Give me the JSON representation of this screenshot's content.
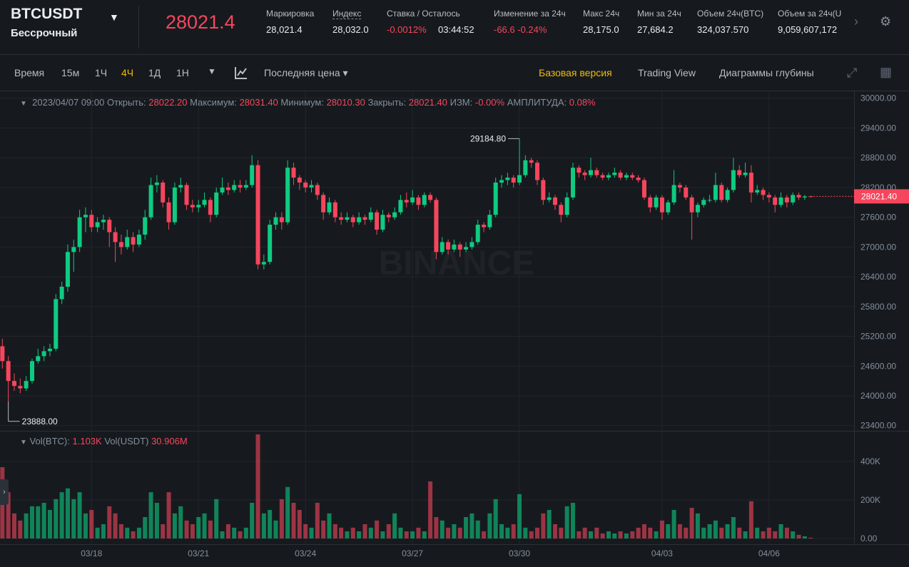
{
  "header": {
    "symbol": "BTCUSDT",
    "contract": "Бессрочный",
    "last_price": "28021.4",
    "stats": [
      {
        "label": "Маркировка",
        "value": "28,021.4"
      },
      {
        "label": "Индекс",
        "value": "28,032.0"
      },
      {
        "label": "Ставка / Осталось",
        "value": "-0.0012%",
        "extra": "03:44:52"
      },
      {
        "label": "Изменение за 24ч",
        "value": "-66.6 -0.24%"
      },
      {
        "label": "Макс 24ч",
        "value": "28,175.0"
      },
      {
        "label": "Мин за 24ч",
        "value": "27,684.2"
      },
      {
        "label": "Объем 24ч(BTC)",
        "value": "324,037.570"
      },
      {
        "label": "Объем за 24ч(U",
        "value": "9,059,607,172"
      }
    ]
  },
  "toolbar": {
    "intervals": [
      "Время",
      "15м",
      "1Ч",
      "4Ч",
      "1Д",
      "1Н"
    ],
    "active_interval": "4Ч",
    "price_type": "Последняя цена",
    "views": [
      "Базовая версия",
      "Trading View",
      "Диаграммы глубины"
    ],
    "active_view": "Базовая версия"
  },
  "chart_data": {
    "type": "candlestick",
    "watermark": "BINANCE",
    "legend": {
      "time": "2023/04/07 09:00",
      "items": [
        {
          "label": "Открыть:",
          "value": "28022.20"
        },
        {
          "label": "Максимум:",
          "value": "28031.40"
        },
        {
          "label": "Минимум:",
          "value": "28010.30"
        },
        {
          "label": "Закрыть:",
          "value": "28021.40"
        },
        {
          "label": "ИЗМ:",
          "value": "-0.00%"
        },
        {
          "label": "АМПЛИТУДА:",
          "value": "0.08%"
        }
      ]
    },
    "volume_legend": [
      {
        "label": "Vol(BTC):",
        "value": "1.103K"
      },
      {
        "label": "Vol(USDT)",
        "value": "30.906M"
      }
    ],
    "colors": {
      "up": "#0ecb81",
      "down": "#f6465d"
    },
    "max_label": "29184.80",
    "min_label": "23888.00",
    "last_price_label": "28021.40",
    "xlim": [
      -0.4,
      143.3
    ],
    "xticks": [
      {
        "value": 15,
        "label": "03/18"
      },
      {
        "value": 33,
        "label": "03/21"
      },
      {
        "value": 51,
        "label": "03/24"
      },
      {
        "value": 69,
        "label": "03/27"
      },
      {
        "value": 87,
        "label": "03/30"
      },
      {
        "value": 111,
        "label": "04/03"
      },
      {
        "value": 129,
        "label": "04/06"
      }
    ],
    "ylim": [
      23310,
      30140
    ],
    "yticks": [
      {
        "value": 30000,
        "label": "30000.00"
      },
      {
        "value": 29400,
        "label": "29400.00"
      },
      {
        "value": 28800,
        "label": "28800.00"
      },
      {
        "value": 28200,
        "label": "28200.00"
      },
      {
        "value": 27600,
        "label": "27600.00"
      },
      {
        "value": 27000,
        "label": "27000.00"
      },
      {
        "value": 26400,
        "label": "26400.00"
      },
      {
        "value": 25800,
        "label": "25800.00"
      },
      {
        "value": 25200,
        "label": "25200.00"
      },
      {
        "value": 24600,
        "label": "24600.00"
      },
      {
        "value": 24000,
        "label": "24000.00"
      },
      {
        "value": 23400,
        "label": "23400.00"
      }
    ],
    "volume_lim": [
      0,
      555
    ],
    "volume_ticks": [
      {
        "value": 0,
        "label": "0.00"
      },
      {
        "value": 200,
        "label": "200K"
      },
      {
        "value": 400,
        "label": "400K"
      }
    ],
    "ohlc": [
      [
        25000,
        25150,
        24550,
        24700
      ],
      [
        24700,
        24800,
        23888,
        24300
      ],
      [
        24300,
        24450,
        24100,
        24200
      ],
      [
        24200,
        24350,
        24050,
        24150
      ],
      [
        24150,
        24400,
        24100,
        24300
      ],
      [
        24300,
        24750,
        24250,
        24700
      ],
      [
        24700,
        24950,
        24650,
        24800
      ],
      [
        24800,
        25000,
        24700,
        24900
      ],
      [
        24900,
        25050,
        24800,
        24950
      ],
      [
        24950,
        26050,
        24900,
        25950
      ],
      [
        25950,
        26300,
        25850,
        26200
      ],
      [
        26200,
        27050,
        26100,
        26900
      ],
      [
        26900,
        27150,
        26500,
        27000
      ],
      [
        27000,
        27750,
        26900,
        27600
      ],
      [
        27600,
        27800,
        27300,
        27650
      ],
      [
        27650,
        27750,
        27300,
        27400
      ],
      [
        27400,
        27600,
        27300,
        27500
      ],
      [
        27500,
        27650,
        27350,
        27550
      ],
      [
        27550,
        27600,
        27000,
        27300
      ],
      [
        27300,
        27400,
        26700,
        27100
      ],
      [
        27100,
        27250,
        26850,
        27000
      ],
      [
        27000,
        27350,
        26950,
        27200
      ],
      [
        27200,
        27300,
        26900,
        27050
      ],
      [
        27050,
        27350,
        27000,
        27250
      ],
      [
        27250,
        27750,
        27150,
        27600
      ],
      [
        27600,
        28400,
        27550,
        28250
      ],
      [
        28250,
        28450,
        28100,
        28300
      ],
      [
        28300,
        28350,
        27800,
        27900
      ],
      [
        27900,
        28000,
        27350,
        27500
      ],
      [
        27500,
        28300,
        27450,
        28200
      ],
      [
        28200,
        28400,
        28100,
        28250
      ],
      [
        28250,
        28300,
        27750,
        27850
      ],
      [
        27850,
        27950,
        27700,
        27800
      ],
      [
        27800,
        27950,
        27700,
        27850
      ],
      [
        27850,
        28100,
        27800,
        27950
      ],
      [
        27950,
        28000,
        27500,
        27650
      ],
      [
        27650,
        28200,
        27600,
        28100
      ],
      [
        28100,
        28400,
        28050,
        28200
      ],
      [
        28200,
        28300,
        28050,
        28150
      ],
      [
        28150,
        28350,
        28100,
        28250
      ],
      [
        28250,
        28350,
        28100,
        28200
      ],
      [
        28200,
        28350,
        28150,
        28250
      ],
      [
        28250,
        28850,
        28200,
        28650
      ],
      [
        28650,
        28750,
        26550,
        26650
      ],
      [
        26650,
        26850,
        26550,
        26700
      ],
      [
        26700,
        27550,
        26650,
        27450
      ],
      [
        27450,
        27700,
        27350,
        27600
      ],
      [
        27600,
        27700,
        27350,
        27500
      ],
      [
        27500,
        28750,
        27450,
        28600
      ],
      [
        28600,
        28700,
        28250,
        28400
      ],
      [
        28400,
        28450,
        28150,
        28300
      ],
      [
        28300,
        28350,
        28100,
        28200
      ],
      [
        28200,
        28350,
        28100,
        28250
      ],
      [
        28250,
        28300,
        27950,
        28050
      ],
      [
        28050,
        28100,
        27550,
        27700
      ],
      [
        27700,
        28000,
        27650,
        27900
      ],
      [
        27900,
        27950,
        27500,
        27600
      ],
      [
        27600,
        27700,
        27450,
        27550
      ],
      [
        27550,
        27700,
        27500,
        27600
      ],
      [
        27600,
        27650,
        27400,
        27500
      ],
      [
        27500,
        27700,
        27450,
        27600
      ],
      [
        27600,
        27650,
        27450,
        27550
      ],
      [
        27550,
        27800,
        27500,
        27700
      ],
      [
        27700,
        27750,
        27250,
        27350
      ],
      [
        27350,
        27750,
        27300,
        27650
      ],
      [
        27650,
        27700,
        27500,
        27600
      ],
      [
        27600,
        27800,
        27550,
        27700
      ],
      [
        27700,
        28050,
        27650,
        27950
      ],
      [
        27950,
        28100,
        27800,
        27900
      ],
      [
        27900,
        28150,
        27850,
        28000
      ],
      [
        28000,
        28050,
        27750,
        27850
      ],
      [
        27850,
        28100,
        27800,
        28050
      ],
      [
        28050,
        28100,
        27900,
        27950
      ],
      [
        27950,
        28000,
        26750,
        26900
      ],
      [
        26900,
        27200,
        26850,
        27100
      ],
      [
        27100,
        27150,
        26850,
        26950
      ],
      [
        26950,
        27150,
        26900,
        27050
      ],
      [
        27050,
        27100,
        26800,
        26950
      ],
      [
        26950,
        27100,
        26900,
        27000
      ],
      [
        27000,
        27200,
        26950,
        27100
      ],
      [
        27100,
        27550,
        27050,
        27450
      ],
      [
        27450,
        27500,
        27300,
        27400
      ],
      [
        27400,
        27750,
        27350,
        27650
      ],
      [
        27650,
        28400,
        27600,
        28300
      ],
      [
        28300,
        28450,
        28200,
        28350
      ],
      [
        28350,
        28500,
        28250,
        28400
      ],
      [
        28400,
        28450,
        28200,
        28300
      ],
      [
        28300,
        29184.8,
        28250,
        28450
      ],
      [
        28450,
        28850,
        28400,
        28750
      ],
      [
        28750,
        28800,
        28600,
        28700
      ],
      [
        28700,
        28750,
        28250,
        28350
      ],
      [
        28350,
        28400,
        27850,
        27950
      ],
      [
        27950,
        28100,
        27900,
        28000
      ],
      [
        28000,
        28050,
        27750,
        27850
      ],
      [
        27850,
        27900,
        27500,
        27650
      ],
      [
        27650,
        28100,
        27600,
        28000
      ],
      [
        28000,
        28700,
        27950,
        28600
      ],
      [
        28600,
        28650,
        28400,
        28500
      ],
      [
        28500,
        28550,
        28350,
        28450
      ],
      [
        28450,
        28800,
        28400,
        28550
      ],
      [
        28550,
        28600,
        28400,
        28450
      ],
      [
        28450,
        28500,
        28350,
        28400
      ],
      [
        28400,
        28500,
        28350,
        28450
      ],
      [
        28450,
        28600,
        28400,
        28500
      ],
      [
        28500,
        28550,
        28350,
        28400
      ],
      [
        28400,
        28500,
        28350,
        28450
      ],
      [
        28450,
        28500,
        28350,
        28400
      ],
      [
        28400,
        28450,
        28300,
        28350
      ],
      [
        28350,
        28400,
        27950,
        28000
      ],
      [
        28000,
        28050,
        27700,
        27800
      ],
      [
        27800,
        28050,
        27750,
        28000
      ],
      [
        28000,
        28050,
        27550,
        27700
      ],
      [
        27700,
        27950,
        27650,
        27900
      ],
      [
        27900,
        28550,
        27850,
        28250
      ],
      [
        28250,
        28300,
        28100,
        28200
      ],
      [
        28200,
        28250,
        27950,
        28000
      ],
      [
        28000,
        28050,
        27150,
        27700
      ],
      [
        27700,
        27900,
        27600,
        27850
      ],
      [
        27850,
        28000,
        27800,
        27950
      ],
      [
        27950,
        28050,
        27900,
        27950
      ],
      [
        27950,
        28500,
        27900,
        28250
      ],
      [
        28250,
        28300,
        27900,
        27950
      ],
      [
        27950,
        28200,
        27900,
        28150
      ],
      [
        28150,
        28800,
        28100,
        28550
      ],
      [
        28550,
        28650,
        28400,
        28450
      ],
      [
        28450,
        28700,
        28400,
        28500
      ],
      [
        28500,
        28650,
        27900,
        28100
      ],
      [
        28100,
        28250,
        28050,
        28150
      ],
      [
        28150,
        28200,
        27950,
        28050
      ],
      [
        28050,
        28100,
        27900,
        28000
      ],
      [
        28000,
        28050,
        27700,
        27850
      ],
      [
        27850,
        28100,
        27800,
        28000
      ],
      [
        28000,
        28050,
        27800,
        27900
      ],
      [
        27900,
        28100,
        27850,
        28050
      ],
      [
        28050,
        28100,
        27950,
        28000
      ],
      [
        28000,
        28050,
        27950,
        28020
      ],
      [
        28022.2,
        28031.4,
        28010.3,
        28021.4
      ]
    ],
    "volumes": [
      370,
      240,
      130,
      93,
      130,
      167,
      167,
      185,
      148,
      204,
      240,
      260,
      204,
      240,
      130,
      148,
      56,
      74,
      167,
      130,
      74,
      56,
      37,
      56,
      111,
      240,
      185,
      74,
      240,
      130,
      167,
      93,
      74,
      111,
      130,
      93,
      204,
      37,
      74,
      56,
      37,
      56,
      185,
      540,
      130,
      148,
      93,
      204,
      267,
      185,
      148,
      74,
      56,
      185,
      93,
      130,
      74,
      56,
      37,
      56,
      37,
      74,
      56,
      93,
      37,
      74,
      130,
      56,
      37,
      37,
      56,
      37,
      296,
      111,
      93,
      56,
      74,
      56,
      111,
      130,
      93,
      37,
      130,
      204,
      74,
      56,
      74,
      230,
      56,
      37,
      56,
      130,
      148,
      74,
      56,
      167,
      185,
      37,
      56,
      37,
      56,
      26,
      37,
      26,
      37,
      26,
      37,
      56,
      74,
      56,
      37,
      93,
      74,
      148,
      74,
      56,
      159,
      130,
      56,
      74,
      93,
      56,
      74,
      111,
      56,
      37,
      193,
      56,
      37,
      56,
      37,
      74,
      56,
      37,
      19,
      11,
      4
    ]
  }
}
